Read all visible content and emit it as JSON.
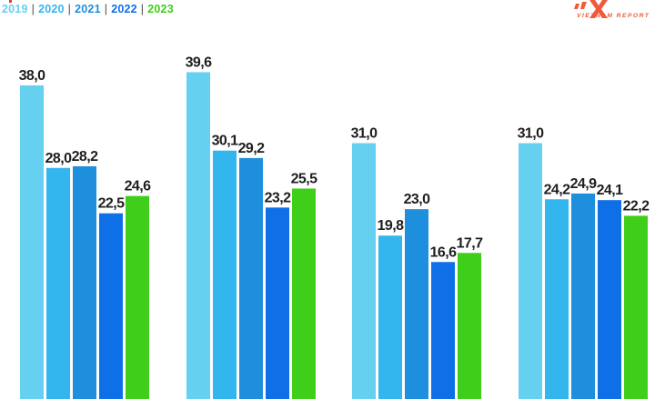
{
  "legend": {
    "items": [
      {
        "label": "2019",
        "color": "#66d0f0"
      },
      {
        "label": "2020",
        "color": "#33b6ee"
      },
      {
        "label": "2021",
        "color": "#1e8fdc"
      },
      {
        "label": "2022",
        "color": "#0f6fe6"
      },
      {
        "label": "2023",
        "color": "#3fcf1a"
      }
    ],
    "separator": "|"
  },
  "logo": {
    "text": "VIETNAM REPORT",
    "color": "#ef5a3a"
  },
  "chart_data": {
    "type": "bar",
    "categories": [
      "",
      "",
      "",
      ""
    ],
    "series": [
      {
        "name": "2019",
        "values": [
          38.0,
          39.6,
          31.0,
          31.0
        ],
        "labels": [
          "38,0",
          "39,6",
          "31,0",
          "31,0"
        ]
      },
      {
        "name": "2020",
        "values": [
          28.0,
          30.1,
          19.8,
          24.2
        ],
        "labels": [
          "28,0",
          "30,1",
          "19,8",
          "24,2"
        ]
      },
      {
        "name": "2021",
        "values": [
          28.2,
          29.2,
          23.0,
          24.9
        ],
        "labels": [
          "28,2",
          "29,2",
          "23,0",
          "24,9"
        ]
      },
      {
        "name": "2022",
        "values": [
          22.5,
          23.2,
          16.6,
          24.1
        ],
        "labels": [
          "22,5",
          "23,2",
          "16,6",
          "24,1"
        ]
      },
      {
        "name": "2023",
        "values": [
          24.6,
          25.5,
          17.7,
          22.2
        ],
        "labels": [
          "24,6",
          "25,5",
          "17,7",
          "22,2"
        ]
      }
    ],
    "colors": [
      "#66d0f0",
      "#33b6ee",
      "#1e8fdc",
      "#0f6fe6",
      "#3fcf1a"
    ],
    "grid": false,
    "legend_position": "top-left"
  }
}
